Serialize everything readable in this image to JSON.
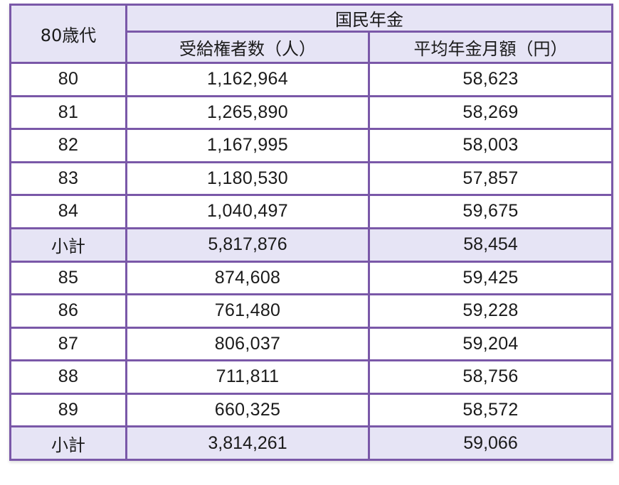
{
  "table": {
    "corner_label": "80歳代",
    "group_header": "国民年金",
    "columns": [
      "受給権者数（人）",
      "平均年金月額（円）"
    ],
    "rows": [
      {
        "age": "80",
        "recipients": "1,162,964",
        "avg_monthly": "58,623",
        "type": "data"
      },
      {
        "age": "81",
        "recipients": "1,265,890",
        "avg_monthly": "58,269",
        "type": "data"
      },
      {
        "age": "82",
        "recipients": "1,167,995",
        "avg_monthly": "58,003",
        "type": "data"
      },
      {
        "age": "83",
        "recipients": "1,180,530",
        "avg_monthly": "57,857",
        "type": "data"
      },
      {
        "age": "84",
        "recipients": "1,040,497",
        "avg_monthly": "59,675",
        "type": "data"
      },
      {
        "age": "小計",
        "recipients": "5,817,876",
        "avg_monthly": "58,454",
        "type": "subtotal"
      },
      {
        "age": "85",
        "recipients": "874,608",
        "avg_monthly": "59,425",
        "type": "data"
      },
      {
        "age": "86",
        "recipients": "761,480",
        "avg_monthly": "59,228",
        "type": "data"
      },
      {
        "age": "87",
        "recipients": "806,037",
        "avg_monthly": "59,204",
        "type": "data"
      },
      {
        "age": "88",
        "recipients": "711,811",
        "avg_monthly": "58,756",
        "type": "data"
      },
      {
        "age": "89",
        "recipients": "660,325",
        "avg_monthly": "58,572",
        "type": "data"
      },
      {
        "age": "小計",
        "recipients": "3,814,261",
        "avg_monthly": "59,066",
        "type": "subtotal"
      }
    ]
  },
  "colors": {
    "border": "#7a58a8",
    "header_bg": "#e6e4f5",
    "row_bg": "#ffffff"
  }
}
